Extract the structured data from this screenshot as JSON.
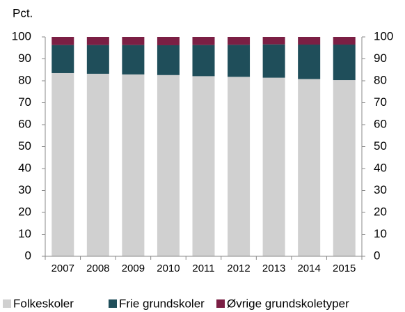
{
  "chart_data": {
    "type": "stacked_bar",
    "y_label": "Pct.",
    "categories": [
      "2007",
      "2008",
      "2009",
      "2010",
      "2011",
      "2012",
      "2013",
      "2014",
      "2015"
    ],
    "series": [
      {
        "name": "Folkeskoler",
        "color": "#d0d0d0",
        "values": [
          83.5,
          83.2,
          82.9,
          82.6,
          82.1,
          81.8,
          81.4,
          80.8,
          80.3
        ]
      },
      {
        "name": "Frie grundskoler",
        "color": "#1f4e5a",
        "values": [
          12.8,
          13.1,
          13.4,
          13.6,
          14.2,
          14.6,
          15.2,
          15.7,
          16.2
        ]
      },
      {
        "name": "Øvrige grundskoletyper",
        "color": "#7b1f44",
        "values": [
          3.7,
          3.7,
          3.7,
          3.8,
          3.7,
          3.6,
          3.4,
          3.5,
          3.5
        ]
      }
    ],
    "ylim": [
      0,
      100
    ],
    "yticks": [
      0,
      10,
      20,
      30,
      40,
      50,
      60,
      70,
      80,
      90,
      100
    ],
    "y2lim": [
      0,
      100
    ],
    "y2ticks": [
      0,
      10,
      20,
      30,
      40,
      50,
      60,
      70,
      80,
      90,
      100
    ]
  }
}
